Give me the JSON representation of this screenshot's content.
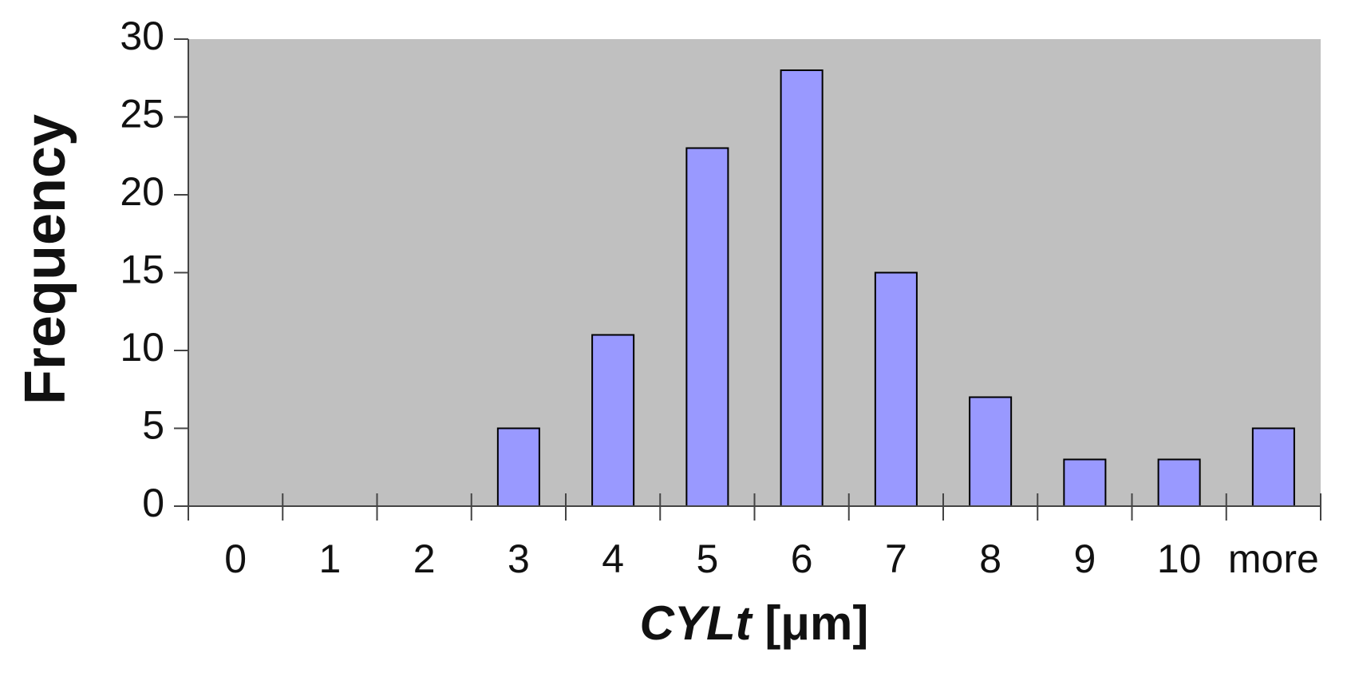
{
  "chart_data": {
    "type": "bar",
    "categories": [
      "0",
      "1",
      "2",
      "3",
      "4",
      "5",
      "6",
      "7",
      "8",
      "9",
      "10",
      "more"
    ],
    "values": [
      0,
      0,
      0,
      5,
      11,
      23,
      28,
      15,
      7,
      3,
      3,
      5
    ],
    "color": "#9999ff",
    "ylim": [
      0,
      30
    ],
    "yticks": [
      0,
      5,
      10,
      15,
      20,
      25,
      30
    ],
    "y_label": "Frequency",
    "x_label": [
      "CYLt",
      "[μm]"
    ],
    "background": "#c0c0c0"
  }
}
